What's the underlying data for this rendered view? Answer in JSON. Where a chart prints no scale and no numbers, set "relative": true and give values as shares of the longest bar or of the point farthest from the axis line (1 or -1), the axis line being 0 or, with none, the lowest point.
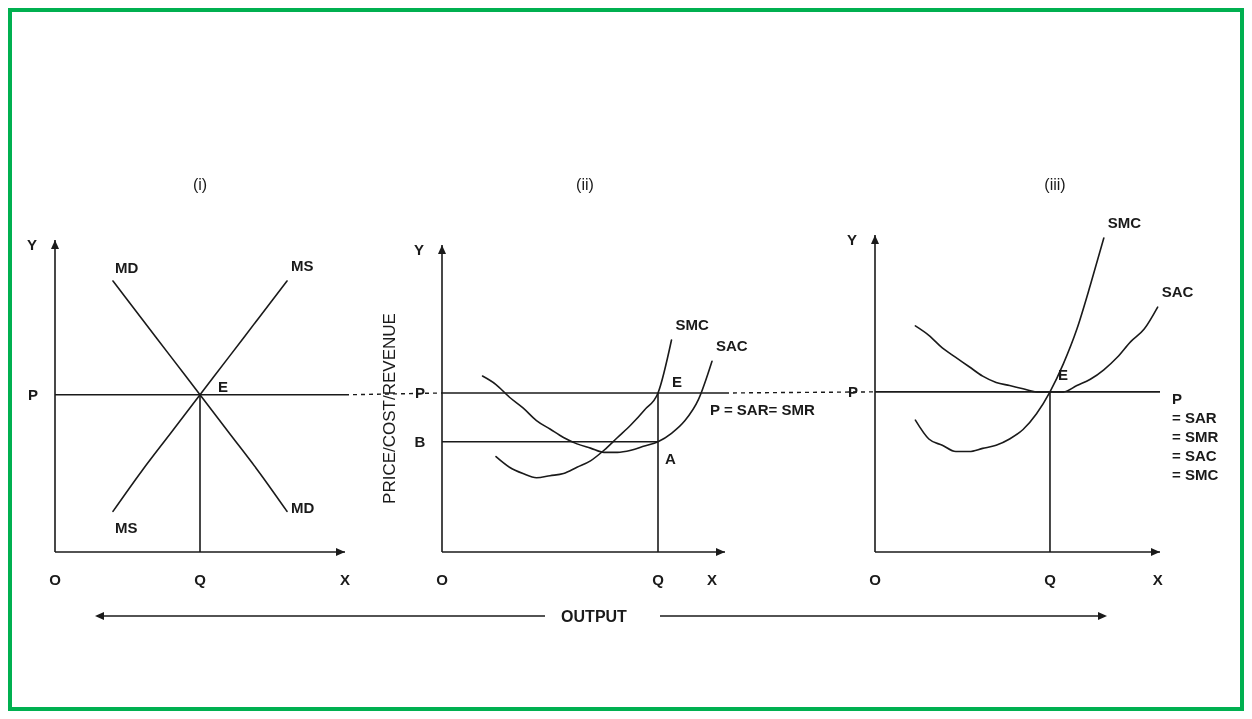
{
  "chart_data": [
    {
      "type": "line",
      "title": "(i)",
      "relative": true,
      "categories": [
        "O",
        null,
        null,
        null,
        null,
        "Q",
        null,
        null,
        null,
        null,
        "X"
      ],
      "series": [
        {
          "name": "MD",
          "color": "#1a1a1a",
          "values": [
            null,
            null,
            1.0,
            0.86,
            0.72,
            0.58,
            0.44,
            0.3,
            0.15,
            null,
            null
          ]
        },
        {
          "name": "MS",
          "color": "#1a1a1a",
          "values": [
            null,
            null,
            0.15,
            0.3,
            0.44,
            0.58,
            0.72,
            0.86,
            1.0,
            null,
            null
          ]
        }
      ],
      "ref_lines": [
        {
          "axis": "y",
          "value": 0.58,
          "label": "P"
        },
        {
          "axis": "x",
          "value": "Q"
        }
      ],
      "annotations": [
        "Y",
        {
          "text": "E",
          "x": "Q",
          "y": 0.58
        }
      ]
    },
    {
      "type": "line",
      "title": "(ii)",
      "relative": true,
      "ylabel": "PRICE/COST/REVENUE",
      "xlabel": "OUTPUT",
      "categories": [
        "O",
        null,
        null,
        null,
        null,
        null,
        null,
        null,
        null,
        null,
        null,
        null,
        null,
        null,
        null,
        null,
        "Q",
        null,
        null,
        null,
        "X"
      ],
      "series": [
        {
          "name": "SAC",
          "color": "#1a1a1a",
          "values": [
            null,
            null,
            null,
            0.83,
            0.79,
            0.73,
            0.68,
            0.62,
            0.58,
            0.54,
            0.51,
            0.49,
            0.47,
            0.47,
            0.48,
            0.5,
            0.52,
            0.56,
            0.62,
            0.72,
            0.9
          ]
        },
        {
          "name": "SMC",
          "color": "#1a1a1a",
          "values": [
            null,
            null,
            null,
            null,
            0.45,
            0.4,
            0.37,
            0.35,
            0.36,
            0.37,
            0.4,
            0.43,
            0.48,
            0.54,
            0.6,
            0.67,
            0.75,
            1.0,
            null,
            null,
            null
          ]
        }
      ],
      "ref_lines": [
        {
          "axis": "y",
          "value": 0.75,
          "label": "P"
        },
        {
          "axis": "y",
          "value": 0.52,
          "label": "B"
        },
        {
          "axis": "x",
          "value": "Q"
        }
      ],
      "annotations": [
        "Y",
        "P = SAR= SMR",
        {
          "text": "E",
          "x": "Q",
          "y": 0.75
        },
        {
          "text": "A",
          "x": "Q",
          "y": 0.52
        }
      ]
    },
    {
      "type": "line",
      "title": "(iii)",
      "relative": true,
      "categories": [
        "O",
        null,
        null,
        null,
        null,
        null,
        null,
        null,
        null,
        null,
        null,
        null,
        null,
        "Q",
        null,
        null,
        null,
        null,
        null,
        null,
        null,
        "X"
      ],
      "series": [
        {
          "name": "SMC",
          "color": "#1a1a1a",
          "values": [
            null,
            null,
            null,
            0.42,
            0.36,
            0.34,
            0.32,
            0.32,
            0.33,
            0.34,
            0.36,
            0.39,
            0.44,
            0.51,
            0.6,
            0.71,
            0.85,
            1.0,
            null,
            null,
            null,
            null
          ]
        },
        {
          "name": "SAC",
          "color": "#1a1a1a",
          "values": [
            null,
            null,
            null,
            0.72,
            0.69,
            0.65,
            0.62,
            0.59,
            0.56,
            0.54,
            0.53,
            0.52,
            0.51,
            0.51,
            0.51,
            0.53,
            0.55,
            0.58,
            0.62,
            0.67,
            0.71,
            0.78
          ]
        }
      ],
      "ref_lines": [
        {
          "axis": "y",
          "value": 0.51,
          "label": "P"
        },
        {
          "axis": "x",
          "value": "Q"
        }
      ],
      "annotations": [
        "Y",
        "P",
        "= SAR",
        "= SMR",
        "= SAC",
        "= SMC",
        {
          "text": "E",
          "x": "Q",
          "y": 0.51
        }
      ]
    }
  ]
}
